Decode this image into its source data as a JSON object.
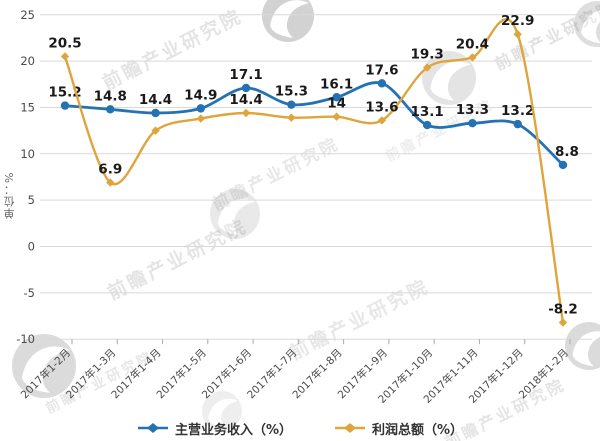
{
  "watermark": {
    "text": "前瞻产业研究院"
  },
  "y_axis_title": "单位：%",
  "chart_data": {
    "type": "line",
    "categories": [
      "2017年1-2月",
      "2017年1-3月",
      "2017年1-4月",
      "2017年1-5月",
      "2017年1-6月",
      "2017年1-7月",
      "2017年1-8月",
      "2017年1-9月",
      "2017年1-10月",
      "2017年1-11月",
      "2017年1-12月",
      "2018年1-2月"
    ],
    "series": [
      {
        "name": "主营业务收入（%）",
        "color": "#2472b4",
        "marker": "circle",
        "values": [
          15.2,
          14.8,
          14.4,
          14.9,
          17.1,
          15.3,
          16.1,
          17.6,
          13.1,
          13.3,
          13.2,
          8.8
        ],
        "labels": [
          "15.2",
          "14.8",
          "14.4",
          "14.9",
          "17.1",
          "15.3",
          "16.1",
          "17.6",
          "13.1",
          "13.3",
          "13.2",
          "8.8"
        ]
      },
      {
        "name": "利润总额（%）",
        "color": "#dfa53d",
        "marker": "diamond",
        "values": [
          20.5,
          6.9,
          12.5,
          13.8,
          14.4,
          13.9,
          14.0,
          13.6,
          19.3,
          20.4,
          22.9,
          -8.2
        ],
        "labels": [
          "20.5",
          "6.9",
          null,
          null,
          "14.4",
          null,
          "14",
          "13.6",
          "19.3",
          "20.4",
          "22.9",
          "-8.2"
        ]
      }
    ],
    "title": "",
    "xlabel": "",
    "ylabel": "单位：%",
    "ylim": [
      -10,
      25
    ],
    "ytick_step": 5,
    "grid": true,
    "legend_position": "bottom"
  },
  "colors": {
    "grid": "#d9d9d9",
    "axis_text": "#4a4a4a",
    "data_label": "#1a1a1a",
    "tick": "#aaaaaa"
  }
}
